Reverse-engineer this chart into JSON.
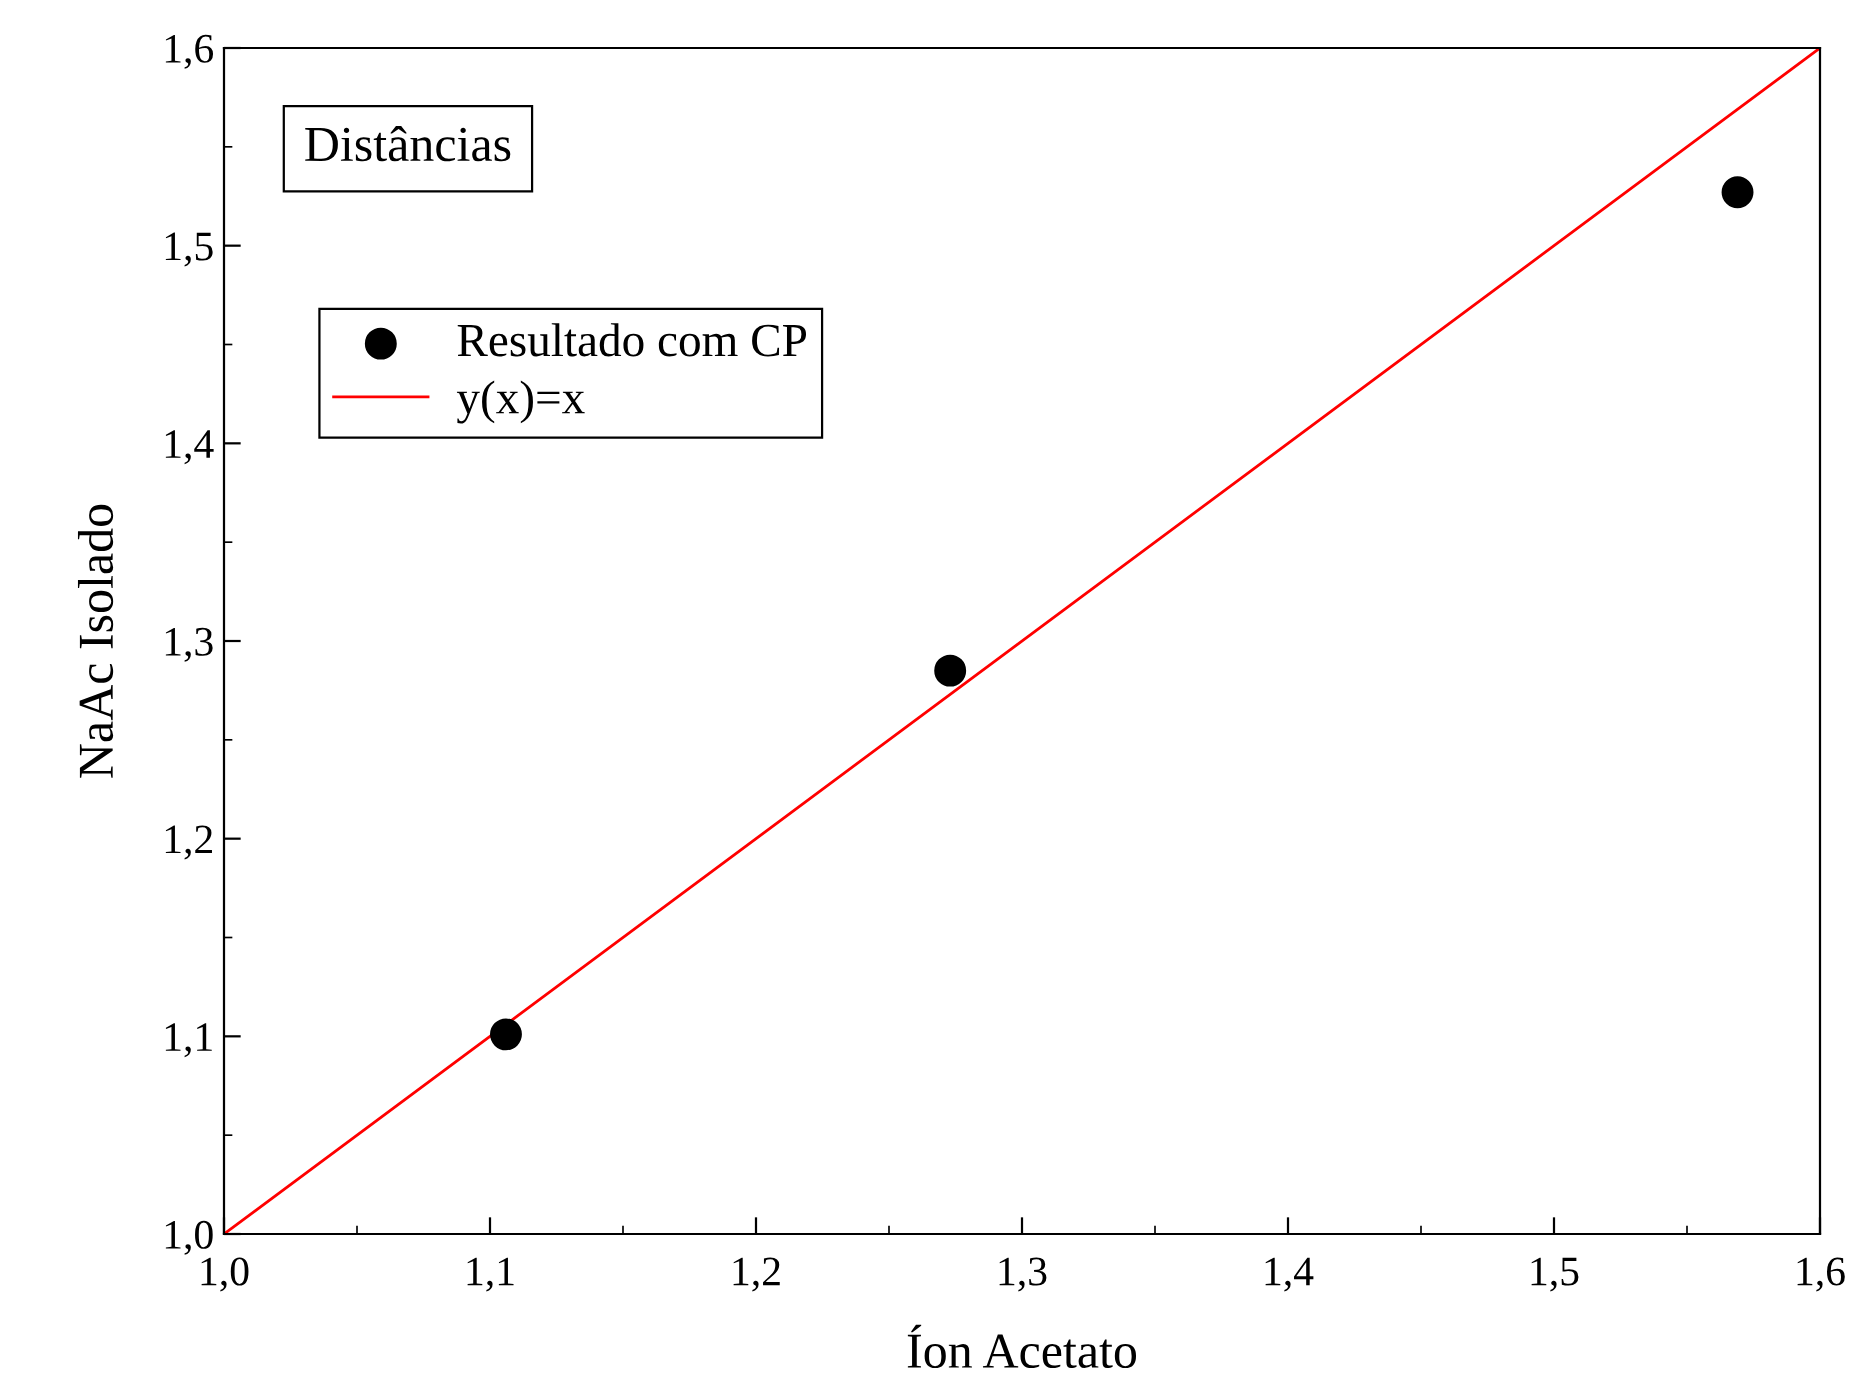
{
  "chart_data": {
    "type": "scatter",
    "xlabel": "Íon Acetato",
    "ylabel": "NaAc Isolado",
    "annotations": [
      "Distâncias"
    ],
    "xlim": [
      1.0,
      1.6
    ],
    "ylim": [
      1.0,
      1.6
    ],
    "xticks": [
      {
        "value": 1.0,
        "label": "1,0"
      },
      {
        "value": 1.1,
        "label": "1,1"
      },
      {
        "value": 1.2,
        "label": "1,2"
      },
      {
        "value": 1.3,
        "label": "1,3"
      },
      {
        "value": 1.4,
        "label": "1,4"
      },
      {
        "value": 1.5,
        "label": "1,5"
      },
      {
        "value": 1.6,
        "label": "1,6"
      }
    ],
    "yticks": [
      {
        "value": 1.0,
        "label": "1,0"
      },
      {
        "value": 1.1,
        "label": "1,1"
      },
      {
        "value": 1.2,
        "label": "1,2"
      },
      {
        "value": 1.3,
        "label": "1,3"
      },
      {
        "value": 1.4,
        "label": "1,4"
      },
      {
        "value": 1.5,
        "label": "1,5"
      },
      {
        "value": 1.6,
        "label": "1,6"
      }
    ],
    "legend": "top left",
    "grid": false,
    "series": [
      {
        "name": "Resultado com CP",
        "color": "#000000",
        "marker": "circle",
        "x": [
          1.106,
          1.273,
          1.569
        ],
        "values": [
          1.101,
          1.285,
          1.527
        ]
      },
      {
        "name": "y(x)=x",
        "type": "line",
        "color": "#ff0000",
        "line_style": "solid",
        "x": [
          1.0,
          1.6
        ],
        "values": [
          1.0,
          1.6
        ]
      }
    ]
  }
}
